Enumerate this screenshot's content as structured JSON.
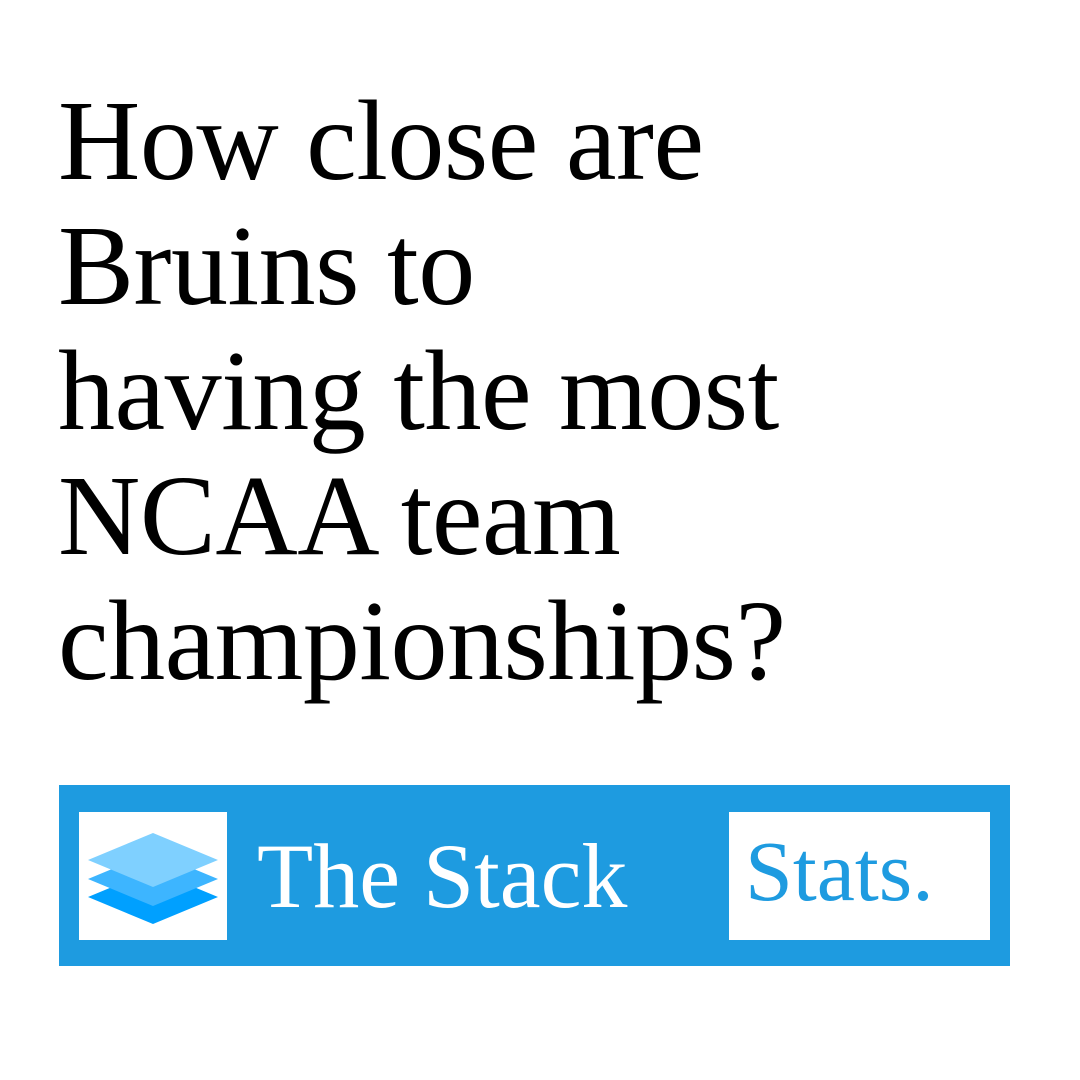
{
  "headline": {
    "lines": [
      "How close are",
      "Bruins to",
      "having the most",
      "NCAA team",
      "championships?"
    ]
  },
  "brand": {
    "name": "The Stack",
    "tag": "Stats.",
    "logo_icon": "stacked-layers-icon"
  },
  "colors": {
    "background": "#ffffff",
    "text": "#000000",
    "brand_blue": "#1e9be0",
    "layer_top": "#7fd0ff",
    "layer_middle": "#3db5ff",
    "layer_bottom": "#00a0ff"
  }
}
